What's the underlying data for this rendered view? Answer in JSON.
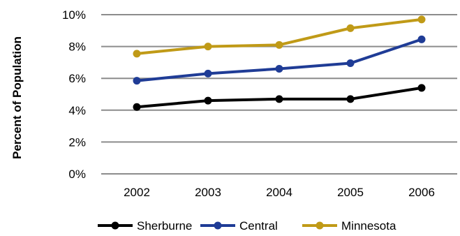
{
  "chart_data": {
    "type": "line",
    "title": "",
    "xlabel": "",
    "ylabel": "Percent of Population",
    "categories": [
      "2002",
      "2003",
      "2004",
      "2005",
      "2006"
    ],
    "ylim": [
      0,
      10
    ],
    "yticks": [
      "0%",
      "2%",
      "4%",
      "6%",
      "8%",
      "10%"
    ],
    "grid": "horizontal",
    "legend_position": "bottom",
    "series": [
      {
        "name": "Sherburne",
        "color": "#000000",
        "values": [
          4.2,
          4.6,
          4.7,
          4.7,
          5.4
        ]
      },
      {
        "name": "Central",
        "color": "#1f3c96",
        "values": [
          5.85,
          6.3,
          6.6,
          6.95,
          8.45
        ]
      },
      {
        "name": "Minnesota",
        "color": "#c09a17",
        "values": [
          7.55,
          8.0,
          8.1,
          9.15,
          9.7
        ]
      }
    ]
  }
}
